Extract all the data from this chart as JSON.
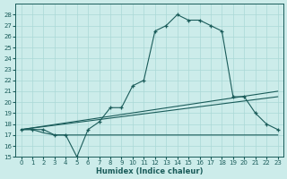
{
  "xlabel": "Humidex (Indice chaleur)",
  "ylabel": "",
  "background_color": "#ccecea",
  "line_color": "#1a5c5a",
  "grid_color": "#aad8d6",
  "xlim": [
    -0.5,
    23.5
  ],
  "ylim": [
    15,
    29
  ],
  "yticks": [
    15,
    16,
    17,
    18,
    19,
    20,
    21,
    22,
    23,
    24,
    25,
    26,
    27,
    28
  ],
  "xticks": [
    0,
    1,
    2,
    3,
    4,
    5,
    6,
    7,
    8,
    9,
    10,
    11,
    12,
    13,
    14,
    15,
    16,
    17,
    18,
    19,
    20,
    21,
    22,
    23
  ],
  "humidex": [
    17.5,
    17.5,
    17.5,
    17.0,
    17.0,
    15.0,
    17.5,
    18.2,
    19.5,
    19.5,
    21.5,
    22.0,
    26.5,
    27.0,
    28.0,
    27.5,
    27.5,
    27.0,
    26.5,
    20.5,
    20.5,
    19.0,
    18.0,
    17.5
  ],
  "min_line": [
    17.5,
    17.5,
    17.2,
    17.0,
    17.0,
    17.0,
    17.0,
    17.0,
    17.0,
    17.0,
    17.0,
    17.0,
    17.0,
    17.0,
    17.0,
    17.0,
    17.0,
    17.0,
    17.0,
    17.0,
    17.0,
    17.0,
    17.0,
    17.0
  ],
  "trend_x": [
    0,
    23
  ],
  "trend_y": [
    17.5,
    21.0
  ],
  "trend2_x": [
    0,
    23
  ],
  "trend2_y": [
    17.5,
    20.5
  ]
}
